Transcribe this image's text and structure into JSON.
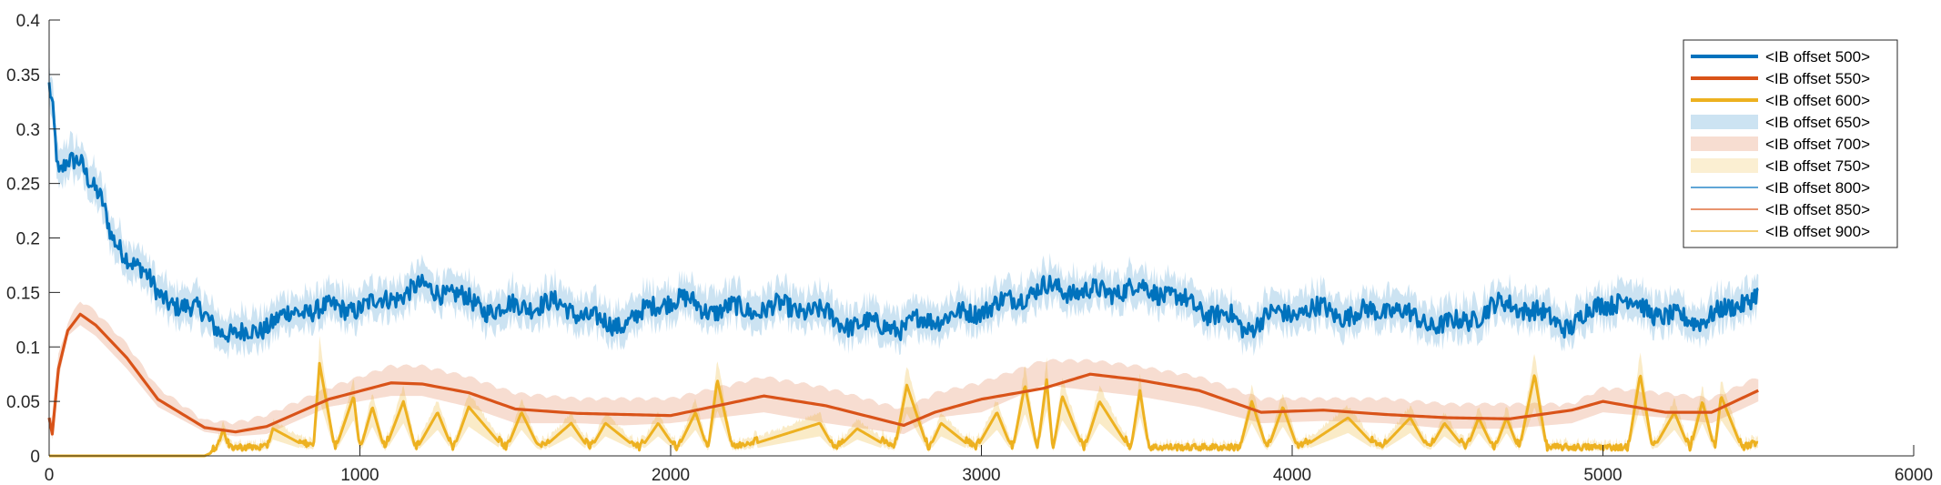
{
  "chart_data": {
    "type": "line",
    "title": "",
    "xlabel": "",
    "ylabel": "",
    "xlim": [
      0,
      6000
    ],
    "ylim": [
      0,
      0.4
    ],
    "xticks": [
      0,
      1000,
      2000,
      3000,
      4000,
      5000,
      6000
    ],
    "yticks": [
      0,
      0.05,
      0.1,
      0.15,
      0.2,
      0.25,
      0.3,
      0.35,
      0.4
    ],
    "xtick_labels": [
      "0",
      "1000",
      "2000",
      "3000",
      "4000",
      "5000",
      "6000"
    ],
    "ytick_labels": [
      "0",
      "0.05",
      "0.1",
      "0.15",
      "0.2",
      "0.25",
      "0.3",
      "0.35",
      "0.4"
    ],
    "grid": false,
    "legend_position": "top-right",
    "legend": [
      {
        "label": "<IB offset 500>",
        "kind": "thick-line",
        "color": "#0072BD"
      },
      {
        "label": "<IB offset 550>",
        "kind": "thick-line",
        "color": "#D95319"
      },
      {
        "label": "<IB offset 600>",
        "kind": "thick-line",
        "color": "#EDB120"
      },
      {
        "label": "<IB offset 650>",
        "kind": "band",
        "color": "#0072BD"
      },
      {
        "label": "<IB offset 700>",
        "kind": "band",
        "color": "#D95319"
      },
      {
        "label": "<IB offset 750>",
        "kind": "band",
        "color": "#EDB120"
      },
      {
        "label": "<IB offset 800>",
        "kind": "thin-line",
        "color": "#0072BD"
      },
      {
        "label": "<IB offset 850>",
        "kind": "thin-line",
        "color": "#D95319"
      },
      {
        "label": "<IB offset 900>",
        "kind": "thin-line",
        "color": "#EDB120"
      }
    ],
    "series": [
      {
        "color": "#0072BD",
        "band_halfwidth": 0.012,
        "x": [
          0,
          10,
          30,
          60,
          100,
          130,
          170,
          200,
          250,
          300,
          350,
          400,
          450,
          500,
          550,
          600,
          650,
          700,
          800,
          900,
          1000,
          1100,
          1200,
          1300,
          1400,
          1500,
          1600,
          1700,
          1800,
          1900,
          2000,
          2100,
          2200,
          2300,
          2400,
          2500,
          2600,
          2700,
          2750,
          2800,
          2900,
          3000,
          3100,
          3200,
          3300,
          3400,
          3500,
          3600,
          3700,
          3800,
          3850,
          3900,
          4000,
          4100,
          4200,
          4300,
          4400,
          4500,
          4600,
          4700,
          4800,
          4900,
          5000,
          5100,
          5200,
          5300,
          5400,
          5500
        ],
        "y": [
          0.34,
          0.32,
          0.25,
          0.265,
          0.27,
          0.25,
          0.23,
          0.2,
          0.19,
          0.175,
          0.15,
          0.14,
          0.13,
          0.125,
          0.115,
          0.11,
          0.12,
          0.125,
          0.13,
          0.13,
          0.14,
          0.15,
          0.15,
          0.145,
          0.14,
          0.14,
          0.135,
          0.13,
          0.125,
          0.13,
          0.14,
          0.135,
          0.14,
          0.135,
          0.13,
          0.13,
          0.125,
          0.12,
          0.11,
          0.12,
          0.13,
          0.14,
          0.14,
          0.15,
          0.155,
          0.155,
          0.15,
          0.145,
          0.14,
          0.13,
          0.115,
          0.12,
          0.13,
          0.14,
          0.13,
          0.13,
          0.125,
          0.125,
          0.13,
          0.135,
          0.13,
          0.125,
          0.14,
          0.135,
          0.13,
          0.13,
          0.13,
          0.145
        ]
      },
      {
        "color": "#D95319",
        "band_upper": [
          0.03,
          0.035,
          0.09,
          0.12,
          0.14,
          0.13,
          0.1,
          0.06,
          0.03,
          0.028,
          0.035,
          0.06,
          0.08,
          0.08,
          0.07,
          0.055,
          0.05,
          0.05,
          0.05,
          0.07,
          0.06,
          0.04,
          0.055,
          0.065,
          0.085,
          0.085,
          0.08,
          0.07,
          0.05,
          0.05,
          0.05,
          0.045,
          0.045,
          0.045,
          0.06,
          0.055,
          0.05,
          0.07
        ],
        "band_lower": [
          0.03,
          0.015,
          0.07,
          0.11,
          0.12,
          0.11,
          0.08,
          0.045,
          0.022,
          0.018,
          0.02,
          0.045,
          0.055,
          0.055,
          0.045,
          0.03,
          0.03,
          0.028,
          0.03,
          0.04,
          0.03,
          0.02,
          0.035,
          0.04,
          0.065,
          0.06,
          0.055,
          0.045,
          0.03,
          0.032,
          0.03,
          0.025,
          0.025,
          0.03,
          0.04,
          0.035,
          0.03,
          0.05
        ],
        "x": [
          0,
          10,
          30,
          60,
          100,
          150,
          250,
          350,
          500,
          600,
          700,
          900,
          1100,
          1200,
          1350,
          1500,
          1700,
          1850,
          2000,
          2300,
          2500,
          2750,
          2850,
          3000,
          3200,
          3350,
          3500,
          3700,
          3900,
          4100,
          4300,
          4500,
          4700,
          4900,
          5000,
          5200,
          5350,
          5500
        ],
        "y": [
          0.035,
          0.02,
          0.08,
          0.115,
          0.13,
          0.12,
          0.09,
          0.052,
          0.026,
          0.022,
          0.027,
          0.052,
          0.067,
          0.066,
          0.058,
          0.043,
          0.039,
          0.038,
          0.037,
          0.055,
          0.046,
          0.028,
          0.04,
          0.052,
          0.062,
          0.075,
          0.07,
          0.06,
          0.04,
          0.042,
          0.038,
          0.035,
          0.034,
          0.042,
          0.05,
          0.04,
          0.04,
          0.06
        ]
      },
      {
        "color": "#EDB120",
        "baseline": 0.005,
        "x": [
          0,
          500,
          540,
          560,
          580,
          700,
          720,
          850,
          870,
          920,
          980,
          1000,
          1040,
          1080,
          1140,
          1180,
          1250,
          1300,
          1350,
          1470,
          1520,
          1580,
          1680,
          1740,
          1790,
          1900,
          1960,
          2020,
          2080,
          2120,
          2150,
          2200,
          2480,
          2530,
          2600,
          2720,
          2760,
          2830,
          2870,
          2980,
          3050,
          3100,
          3140,
          3180,
          3210,
          3230,
          3260,
          3330,
          3380,
          3480,
          3510,
          3540,
          3830,
          3870,
          3920,
          3970,
          4020,
          4180,
          4280,
          4380,
          4440,
          4490,
          4560,
          4600,
          4650,
          4690,
          4730,
          4780,
          4820,
          4880,
          5080,
          5120,
          5160,
          5230,
          5280,
          5320,
          5360,
          5380,
          5450,
          5500
        ],
        "y": [
          0,
          0,
          0.005,
          0.025,
          0.005,
          0.005,
          0.025,
          0.005,
          0.085,
          0.005,
          0.055,
          0.005,
          0.045,
          0.005,
          0.05,
          0.005,
          0.04,
          0.005,
          0.045,
          0.005,
          0.04,
          0.005,
          0.03,
          0.005,
          0.03,
          0.005,
          0.03,
          0.005,
          0.04,
          0.005,
          0.07,
          0.005,
          0.03,
          0.005,
          0.025,
          0.005,
          0.065,
          0.005,
          0.03,
          0.005,
          0.04,
          0.005,
          0.065,
          0.005,
          0.07,
          0.005,
          0.055,
          0.005,
          0.05,
          0.005,
          0.06,
          0.005,
          0.005,
          0.05,
          0.005,
          0.045,
          0.005,
          0.035,
          0.005,
          0.035,
          0.005,
          0.03,
          0.005,
          0.035,
          0.005,
          0.035,
          0.005,
          0.075,
          0.005,
          0.005,
          0.005,
          0.075,
          0.005,
          0.04,
          0.005,
          0.05,
          0.005,
          0.055,
          0.005,
          0.01
        ]
      }
    ]
  }
}
